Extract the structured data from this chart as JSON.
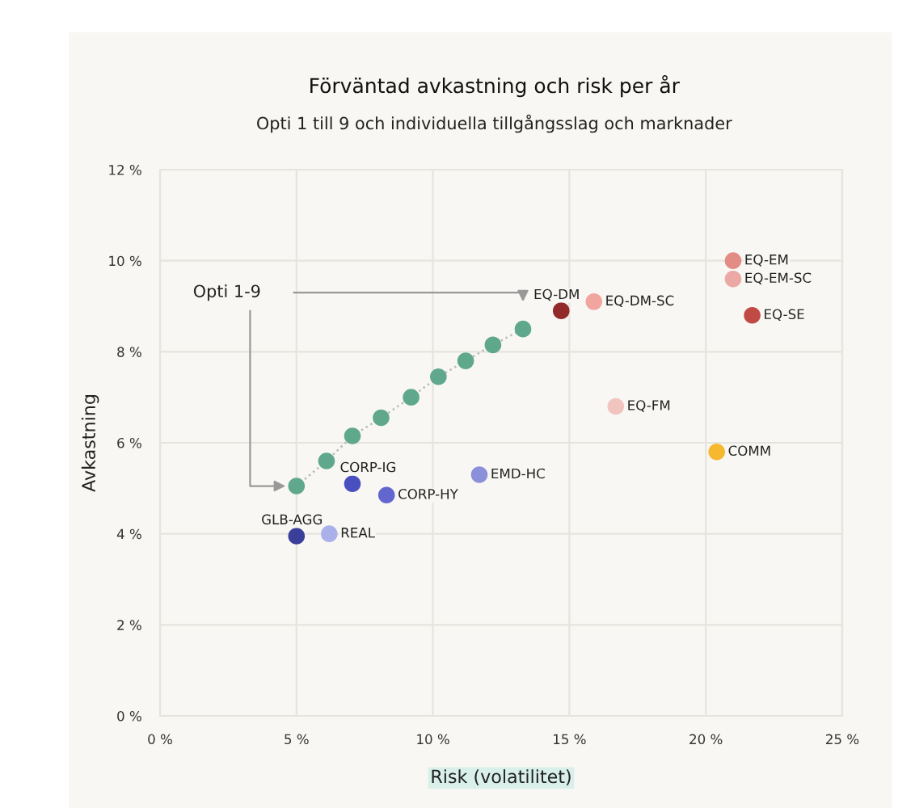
{
  "chart_data": {
    "type": "scatter",
    "title": "Förväntad avkastning och risk per år",
    "subtitle": "Opti 1 till 9 och individuella tillgångsslag och marknader",
    "xlabel": "Risk (volatilitet)",
    "ylabel": "Avkastning",
    "xlim": [
      0,
      25
    ],
    "ylim": [
      0,
      12
    ],
    "xticks": [
      {
        "value": 0,
        "label": "0 %"
      },
      {
        "value": 5,
        "label": "5 %"
      },
      {
        "value": 10,
        "label": "10 %"
      },
      {
        "value": 15,
        "label": "15 %"
      },
      {
        "value": 20,
        "label": "20 %"
      },
      {
        "value": 25,
        "label": "25 %"
      }
    ],
    "yticks": [
      {
        "value": 0,
        "label": "0 %"
      },
      {
        "value": 2,
        "label": "2 %"
      },
      {
        "value": 4,
        "label": "4 %"
      },
      {
        "value": 6,
        "label": "6 %"
      },
      {
        "value": 8,
        "label": "8 %"
      },
      {
        "value": 10,
        "label": "10 %"
      },
      {
        "value": 12,
        "label": "12 %"
      }
    ],
    "grid": true,
    "legend": false,
    "marker": "circle",
    "series": [
      {
        "name": "Opti 1-9",
        "type": "line",
        "line_style": "dotted",
        "color": "#5fa88e",
        "x": [
          5.0,
          6.1,
          7.05,
          8.1,
          9.2,
          10.2,
          11.2,
          12.2,
          13.3
        ],
        "values": [
          5.05,
          5.6,
          6.15,
          6.55,
          7.0,
          7.45,
          7.8,
          8.15,
          8.5
        ]
      },
      {
        "name": "GLB-AGG",
        "color": "#3a3f9a",
        "x": [
          5.0
        ],
        "values": [
          3.95
        ]
      },
      {
        "name": "REAL",
        "color": "#aab0ea",
        "x": [
          6.2
        ],
        "values": [
          4.0
        ]
      },
      {
        "name": "CORP-IG",
        "color": "#4a4fc0",
        "x": [
          7.05
        ],
        "values": [
          5.1
        ]
      },
      {
        "name": "CORP-HY",
        "color": "#6466d0",
        "x": [
          8.3
        ],
        "values": [
          4.85
        ]
      },
      {
        "name": "EMD-HC",
        "color": "#8a90da",
        "x": [
          11.7
        ],
        "values": [
          5.3
        ]
      },
      {
        "name": "EQ-DM",
        "color": "#922a2a",
        "x": [
          14.7
        ],
        "values": [
          8.9
        ]
      },
      {
        "name": "EQ-DM-SC",
        "color": "#f0a59e",
        "x": [
          15.9
        ],
        "values": [
          9.1
        ]
      },
      {
        "name": "EQ-FM",
        "color": "#f2c4c0",
        "x": [
          16.7
        ],
        "values": [
          6.8
        ]
      },
      {
        "name": "COMM",
        "color": "#f5b82e",
        "x": [
          20.4
        ],
        "values": [
          5.8
        ]
      },
      {
        "name": "EQ-EM",
        "color": "#e38c86",
        "x": [
          21.0
        ],
        "values": [
          10.0
        ]
      },
      {
        "name": "EQ-EM-SC",
        "color": "#eaa9a4",
        "x": [
          21.0
        ],
        "values": [
          9.6
        ]
      },
      {
        "name": "EQ-SE",
        "color": "#c04a44",
        "x": [
          21.7
        ],
        "values": [
          8.8
        ]
      }
    ]
  }
}
